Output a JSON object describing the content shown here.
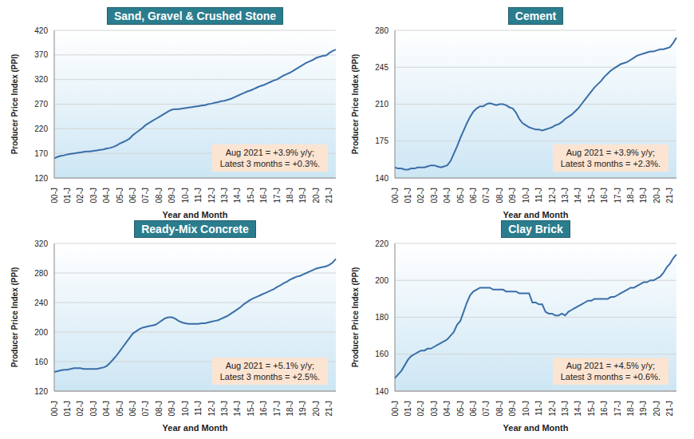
{
  "chart_data": [
    {
      "type": "line",
      "title": "Sand, Gravel & Crushed Stone",
      "x_label": "Year and Month",
      "y_label": "Producer Price Index (PPI)",
      "annotation": [
        "Aug 2021 = +3.9% y/y;",
        "Latest 3 months = +0.3%."
      ],
      "categories": [
        "00-J",
        null,
        null,
        null,
        "01-J",
        null,
        null,
        null,
        "02-J",
        null,
        null,
        null,
        "03-J",
        null,
        null,
        null,
        "04-J",
        null,
        null,
        null,
        "05-J",
        null,
        null,
        null,
        "06-J",
        null,
        null,
        null,
        "07-J",
        null,
        null,
        null,
        "08-J",
        null,
        null,
        null,
        "09-J",
        null,
        null,
        null,
        "10-J",
        null,
        null,
        null,
        "11-J",
        null,
        null,
        null,
        "12-J",
        null,
        null,
        null,
        "13-J",
        null,
        null,
        null,
        "14-J",
        null,
        null,
        null,
        "15-J",
        null,
        null,
        null,
        "16-J",
        null,
        null,
        null,
        "17-J",
        null,
        null,
        null,
        "18-J",
        null,
        null,
        null,
        "19-J",
        null,
        null,
        null,
        "20-J",
        null,
        null,
        null,
        "21-J",
        null,
        null
      ],
      "values": [
        160,
        163,
        165,
        166,
        168,
        169,
        170,
        171,
        172,
        173,
        174,
        174,
        175,
        176,
        177,
        178,
        180,
        181,
        183,
        186,
        190,
        193,
        196,
        200,
        207,
        212,
        217,
        222,
        228,
        232,
        236,
        240,
        244,
        248,
        252,
        256,
        259,
        260,
        260,
        261,
        262,
        263,
        264,
        265,
        266,
        267,
        268,
        270,
        271,
        273,
        274,
        276,
        277,
        279,
        281,
        284,
        287,
        290,
        293,
        296,
        298,
        301,
        304,
        307,
        309,
        312,
        315,
        318,
        320,
        324,
        328,
        331,
        334,
        338,
        342,
        346,
        350,
        354,
        357,
        360,
        364,
        366,
        368,
        369,
        374,
        378,
        381
      ],
      "color": "#3a6ea8",
      "ylim": [
        120,
        420
      ],
      "yticks": [
        120,
        170,
        220,
        270,
        320,
        370,
        420
      ],
      "grid": true
    },
    {
      "type": "line",
      "title": "Cement",
      "x_label": "Year and Month",
      "y_label": "Producer Price Index (PPI)",
      "annotation": [
        "Aug 2021 = +3.9% y/y;",
        "Latest 3 months = +2.3%."
      ],
      "categories": [
        "00-J",
        null,
        null,
        null,
        "01-J",
        null,
        null,
        null,
        "02-J",
        null,
        null,
        null,
        "03-J",
        null,
        null,
        null,
        "04-J",
        null,
        null,
        null,
        "05-J",
        null,
        null,
        null,
        "06-J",
        null,
        null,
        null,
        "07-J",
        null,
        null,
        null,
        "08-J",
        null,
        null,
        null,
        "09-J",
        null,
        null,
        null,
        "10-J",
        null,
        null,
        null,
        "11-J",
        null,
        null,
        null,
        "12-J",
        null,
        null,
        null,
        "13-J",
        null,
        null,
        null,
        "14-J",
        null,
        null,
        null,
        "15-J",
        null,
        null,
        null,
        "16-J",
        null,
        null,
        null,
        "17-J",
        null,
        null,
        null,
        "18-J",
        null,
        null,
        null,
        "19-J",
        null,
        null,
        null,
        "20-J",
        null,
        null,
        null,
        "21-J",
        null,
        null
      ],
      "values": [
        150,
        149,
        149,
        148,
        148,
        149,
        149,
        150,
        150,
        150,
        151,
        152,
        152,
        151,
        150,
        151,
        152,
        156,
        163,
        170,
        178,
        185,
        192,
        198,
        203,
        206,
        208,
        208,
        210,
        211,
        210,
        209,
        210,
        210,
        209,
        207,
        206,
        202,
        196,
        192,
        190,
        188,
        187,
        186,
        186,
        185,
        186,
        187,
        188,
        190,
        191,
        193,
        196,
        198,
        200,
        203,
        206,
        210,
        214,
        218,
        222,
        226,
        229,
        232,
        236,
        239,
        242,
        244,
        246,
        248,
        249,
        250,
        252,
        254,
        256,
        257,
        258,
        259,
        260,
        260,
        261,
        262,
        262,
        263,
        264,
        268,
        273
      ],
      "color": "#3a6ea8",
      "ylim": [
        140,
        280
      ],
      "yticks": [
        140,
        175,
        210,
        245,
        280
      ],
      "grid": true
    },
    {
      "type": "line",
      "title": "Ready-Mix Concrete",
      "x_label": "Year and Month",
      "y_label": "Producer Price Index (PPI)",
      "annotation": [
        "Aug 2021 = +5.1% y/y;",
        "Latest 3 months = +2.5%."
      ],
      "categories": [
        "00-J",
        null,
        null,
        null,
        "01-J",
        null,
        null,
        null,
        "02-J",
        null,
        null,
        null,
        "03-J",
        null,
        null,
        null,
        "04-J",
        null,
        null,
        null,
        "05-J",
        null,
        null,
        null,
        "06-J",
        null,
        null,
        null,
        "07-J",
        null,
        null,
        null,
        "08-J",
        null,
        null,
        null,
        "09-J",
        null,
        null,
        null,
        "10-J",
        null,
        null,
        null,
        "11-J",
        null,
        null,
        null,
        "12-J",
        null,
        null,
        null,
        "13-J",
        null,
        null,
        null,
        "14-J",
        null,
        null,
        null,
        "15-J",
        null,
        null,
        null,
        "16-J",
        null,
        null,
        null,
        "17-J",
        null,
        null,
        null,
        "18-J",
        null,
        null,
        null,
        "19-J",
        null,
        null,
        null,
        "20-J",
        null,
        null,
        null,
        "21-J",
        null,
        null
      ],
      "values": [
        146,
        147,
        148,
        149,
        149,
        150,
        151,
        151,
        151,
        150,
        150,
        150,
        150,
        150,
        151,
        152,
        154,
        158,
        163,
        168,
        174,
        180,
        186,
        192,
        198,
        201,
        204,
        206,
        207,
        208,
        209,
        210,
        213,
        216,
        219,
        220,
        220,
        218,
        215,
        213,
        212,
        211,
        211,
        211,
        211,
        212,
        212,
        213,
        214,
        215,
        216,
        218,
        220,
        222,
        225,
        228,
        231,
        234,
        238,
        241,
        244,
        246,
        248,
        250,
        252,
        254,
        256,
        258,
        261,
        263,
        266,
        268,
        271,
        273,
        275,
        276,
        278,
        280,
        282,
        284,
        286,
        287,
        288,
        289,
        291,
        294,
        299
      ],
      "color": "#3a6ea8",
      "ylim": [
        120,
        320
      ],
      "yticks": [
        120,
        160,
        200,
        240,
        280,
        320
      ],
      "grid": true
    },
    {
      "type": "line",
      "title": "Clay Brick",
      "x_label": "Year and Month",
      "y_label": "Producer Price Index (PPI)",
      "annotation": [
        "Aug 2021 = +4.5% y/y;",
        "Latest 3 months = +0.6%."
      ],
      "categories": [
        "00-J",
        null,
        null,
        null,
        "01-J",
        null,
        null,
        null,
        "02-J",
        null,
        null,
        null,
        "03-J",
        null,
        null,
        null,
        "04-J",
        null,
        null,
        null,
        "05-J",
        null,
        null,
        null,
        "06-J",
        null,
        null,
        null,
        "07-J",
        null,
        null,
        null,
        "08-J",
        null,
        null,
        null,
        "09-J",
        null,
        null,
        null,
        "10-J",
        null,
        null,
        null,
        "11-J",
        null,
        null,
        null,
        "12-J",
        null,
        null,
        null,
        "13-J",
        null,
        null,
        null,
        "14-J",
        null,
        null,
        null,
        "15-J",
        null,
        null,
        null,
        "16-J",
        null,
        null,
        null,
        "17-J",
        null,
        null,
        null,
        "18-J",
        null,
        null,
        null,
        "19-J",
        null,
        null,
        null,
        "20-J",
        null,
        null,
        null,
        "21-J",
        null,
        null
      ],
      "values": [
        147,
        149,
        151,
        154,
        157,
        159,
        160,
        161,
        162,
        162,
        163,
        163,
        164,
        165,
        166,
        167,
        168,
        170,
        172,
        176,
        178,
        183,
        188,
        192,
        194,
        195,
        196,
        196,
        196,
        196,
        195,
        195,
        195,
        195,
        194,
        194,
        194,
        194,
        193,
        193,
        193,
        193,
        188,
        188,
        187,
        187,
        183,
        182,
        182,
        181,
        181,
        182,
        181,
        183,
        184,
        185,
        186,
        187,
        188,
        189,
        189,
        190,
        190,
        190,
        190,
        190,
        191,
        191,
        192,
        193,
        194,
        195,
        196,
        196,
        197,
        198,
        199,
        199,
        200,
        200,
        201,
        202,
        204,
        207,
        209,
        212,
        214
      ],
      "color": "#3a6ea8",
      "ylim": [
        140,
        220
      ],
      "yticks": [
        140,
        160,
        180,
        200,
        220
      ],
      "grid": true
    }
  ]
}
